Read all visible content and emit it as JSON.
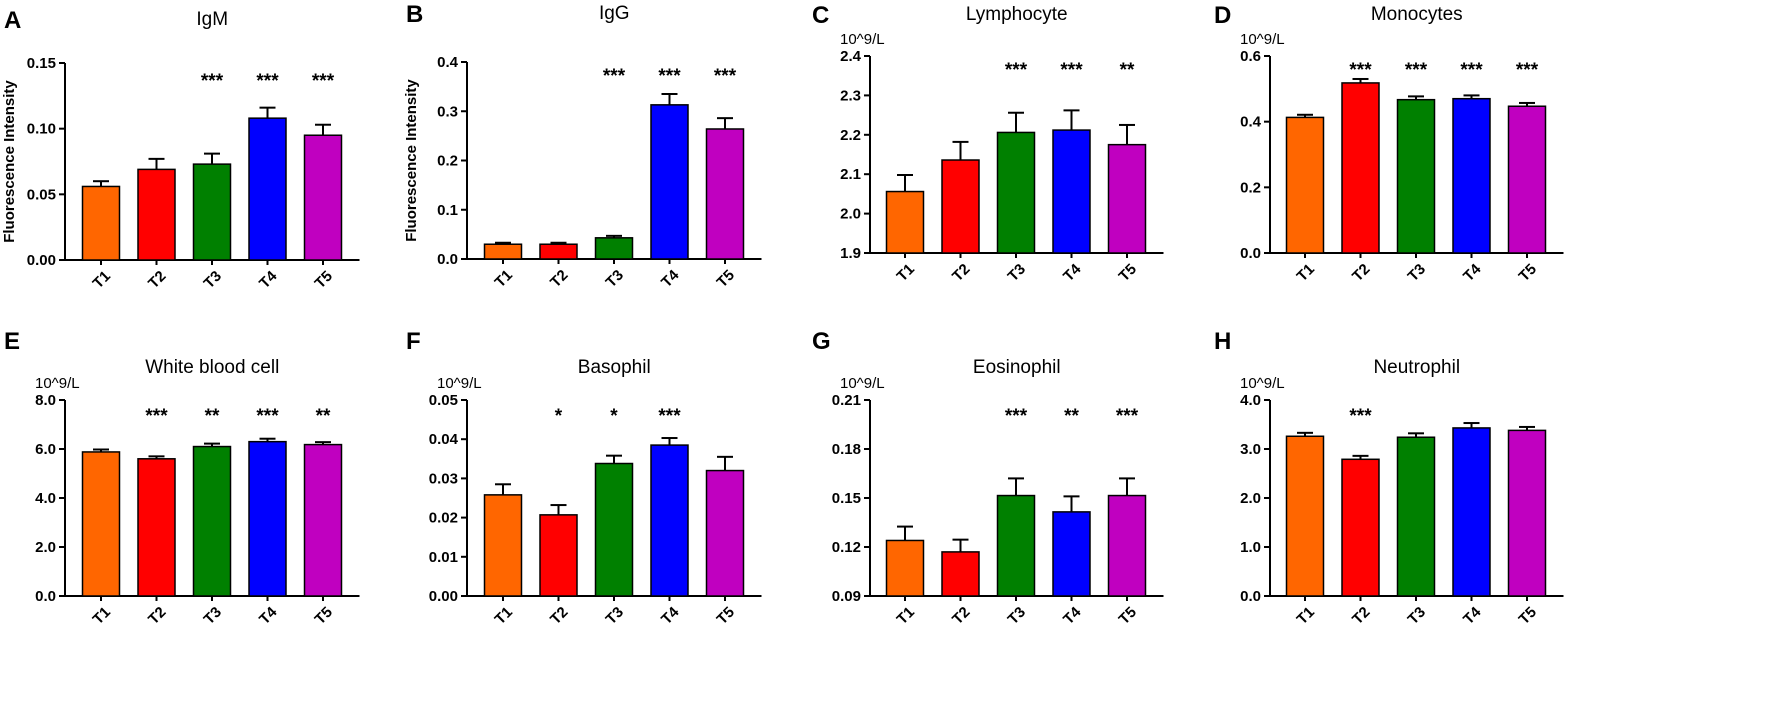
{
  "figure": {
    "colors": {
      "T1": "#ff6600",
      "T2": "#ff0000",
      "T3": "#008000",
      "T4": "#0000ff",
      "T5": "#c000c0"
    }
  },
  "chart_data": [
    {
      "panel": "A",
      "type": "bar",
      "title": "IgM",
      "ylabel": "Fluorescence Intensity",
      "unit": "",
      "categories": [
        "T1",
        "T2",
        "T3",
        "T4",
        "T5"
      ],
      "values": [
        0.056,
        0.069,
        0.073,
        0.108,
        0.095
      ],
      "errors": [
        0.004,
        0.008,
        0.008,
        0.008,
        0.008
      ],
      "significance": [
        "",
        "",
        "***",
        "***",
        "***"
      ],
      "ylim": [
        0,
        0.15
      ],
      "yticks": [
        0,
        0.05,
        0.1,
        0.15
      ],
      "ytick_labels": [
        "0.00",
        "0.05",
        "0.10",
        "0.15"
      ]
    },
    {
      "panel": "B",
      "type": "bar",
      "title": "IgG",
      "ylabel": "Fluorescence Intensity",
      "unit": "",
      "categories": [
        "T1",
        "T2",
        "T3",
        "T4",
        "T5"
      ],
      "values": [
        0.03,
        0.03,
        0.043,
        0.313,
        0.264
      ],
      "errors": [
        0.003,
        0.003,
        0.004,
        0.022,
        0.022
      ],
      "significance": [
        "",
        "",
        "***",
        "***",
        "***"
      ],
      "ylim": [
        0,
        0.4
      ],
      "yticks": [
        0,
        0.1,
        0.2,
        0.3,
        0.4
      ],
      "ytick_labels": [
        "0.0",
        "0.1",
        "0.2",
        "0.3",
        "0.4"
      ]
    },
    {
      "panel": "C",
      "type": "bar",
      "title": "Lymphocyte",
      "ylabel": "",
      "unit": "10^9/L",
      "categories": [
        "T1",
        "T2",
        "T3",
        "T4",
        "T5"
      ],
      "values": [
        2.056,
        2.136,
        2.206,
        2.212,
        2.175
      ],
      "errors": [
        0.042,
        0.046,
        0.05,
        0.05,
        0.05
      ],
      "significance": [
        "",
        "",
        "***",
        "***",
        "**"
      ],
      "ylim": [
        1.9,
        2.4
      ],
      "yticks": [
        1.9,
        2.0,
        2.1,
        2.2,
        2.3,
        2.4
      ],
      "ytick_labels": [
        "1.9",
        "2.0",
        "2.1",
        "2.2",
        "2.3",
        "2.4"
      ]
    },
    {
      "panel": "D",
      "type": "bar",
      "title": "Monocytes",
      "ylabel": "",
      "unit": "10^9/L",
      "categories": [
        "T1",
        "T2",
        "T3",
        "T4",
        "T5"
      ],
      "values": [
        0.413,
        0.518,
        0.467,
        0.47,
        0.447
      ],
      "errors": [
        0.008,
        0.012,
        0.01,
        0.01,
        0.01
      ],
      "significance": [
        "",
        "***",
        "***",
        "***",
        "***"
      ],
      "ylim": [
        0,
        0.6
      ],
      "yticks": [
        0,
        0.2,
        0.4,
        0.6
      ],
      "ytick_labels": [
        "0.0",
        "0.2",
        "0.4",
        "0.6"
      ]
    },
    {
      "panel": "E",
      "type": "bar",
      "title": "White blood cell",
      "ylabel": "",
      "unit": "10^9/L",
      "categories": [
        "T1",
        "T2",
        "T3",
        "T4",
        "T5"
      ],
      "values": [
        5.88,
        5.6,
        6.1,
        6.3,
        6.18
      ],
      "errors": [
        0.1,
        0.1,
        0.12,
        0.12,
        0.1
      ],
      "significance": [
        "",
        "***",
        "**",
        "***",
        "**"
      ],
      "ylim": [
        0,
        8
      ],
      "yticks": [
        0,
        2,
        4,
        6,
        8
      ],
      "ytick_labels": [
        "0.0",
        "2.0",
        "4.0",
        "6.0",
        "8.0"
      ]
    },
    {
      "panel": "F",
      "type": "bar",
      "title": "Basophil",
      "ylabel": "",
      "unit": "10^9/L",
      "categories": [
        "T1",
        "T2",
        "T3",
        "T4",
        "T5"
      ],
      "values": [
        0.0258,
        0.0207,
        0.0338,
        0.0385,
        0.032
      ],
      "errors": [
        0.0027,
        0.0025,
        0.002,
        0.0018,
        0.0035
      ],
      "significance": [
        "",
        "*",
        "*",
        "***",
        ""
      ],
      "ylim": [
        0,
        0.05
      ],
      "yticks": [
        0,
        0.01,
        0.02,
        0.03,
        0.04,
        0.05
      ],
      "ytick_labels": [
        "0.00",
        "0.01",
        "0.02",
        "0.03",
        "0.04",
        "0.05"
      ]
    },
    {
      "panel": "G",
      "type": "bar",
      "title": "Eosinophil",
      "ylabel": "",
      "unit": "10^9/L",
      "categories": [
        "T1",
        "T2",
        "T3",
        "T4",
        "T5"
      ],
      "values": [
        0.124,
        0.117,
        0.1515,
        0.1415,
        0.1515
      ],
      "errors": [
        0.0085,
        0.0075,
        0.0105,
        0.0095,
        0.0105
      ],
      "significance": [
        "",
        "",
        "***",
        "**",
        "***"
      ],
      "ylim": [
        0.09,
        0.21
      ],
      "yticks": [
        0.09,
        0.12,
        0.15,
        0.18,
        0.21
      ],
      "ytick_labels": [
        "0.09",
        "0.12",
        "0.15",
        "0.18",
        "0.21"
      ]
    },
    {
      "panel": "H",
      "type": "bar",
      "title": "Neutrophil",
      "ylabel": "",
      "unit": "10^9/L",
      "categories": [
        "T1",
        "T2",
        "T3",
        "T4",
        "T5"
      ],
      "values": [
        3.26,
        2.79,
        3.24,
        3.43,
        3.38
      ],
      "errors": [
        0.07,
        0.07,
        0.08,
        0.1,
        0.07
      ],
      "significance": [
        "",
        "***",
        "",
        "",
        ""
      ],
      "ylim": [
        0,
        4
      ],
      "yticks": [
        0,
        1,
        2,
        3,
        4
      ],
      "ytick_labels": [
        "0.0",
        "1.0",
        "2.0",
        "3.0",
        "4.0"
      ]
    }
  ]
}
